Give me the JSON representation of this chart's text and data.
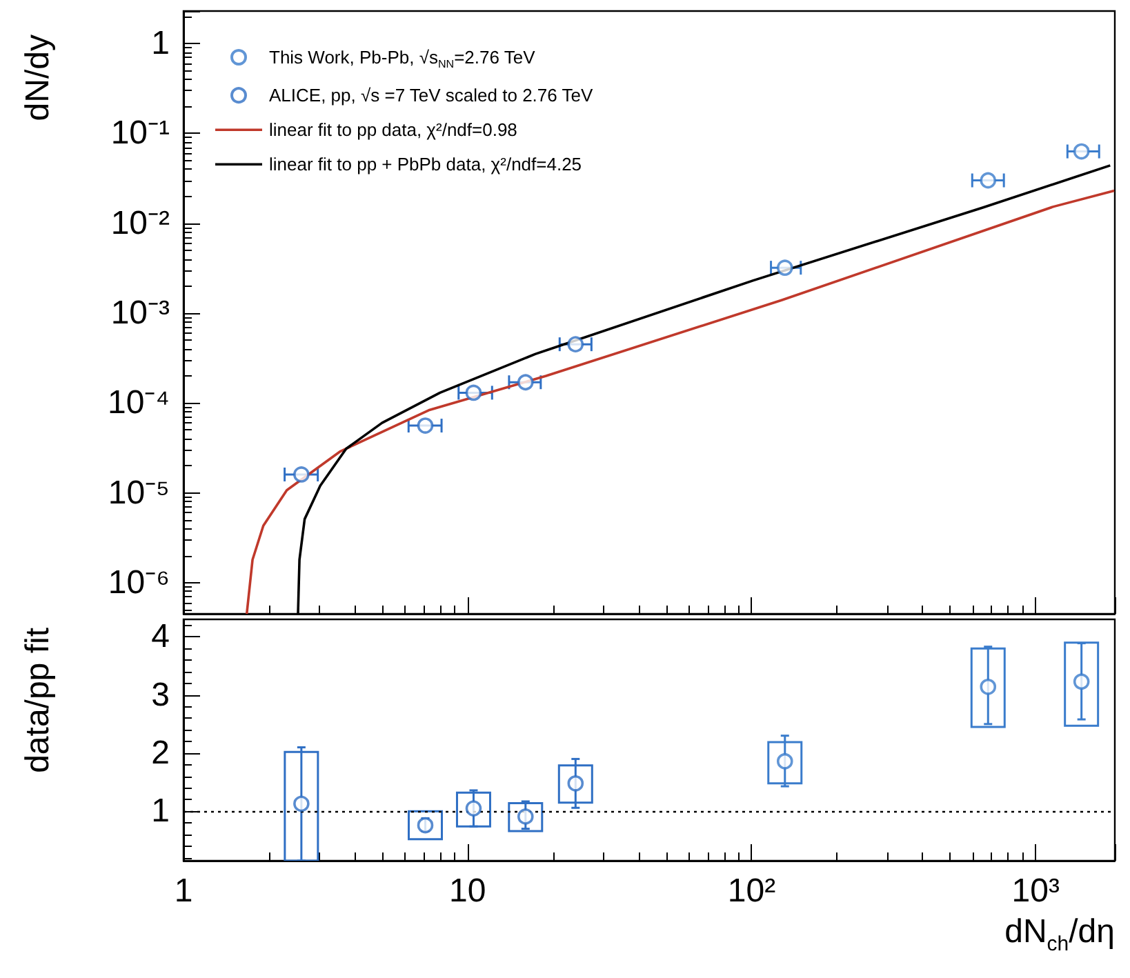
{
  "chart_data": [
    {
      "type": "scatter",
      "ylabel": "dN/dy",
      "log": "xy",
      "legend": "top left",
      "marker": "circle",
      "tick_labels": "y",
      "xlim": [
        1,
        1900
      ],
      "ylim": [
        4.5e-07,
        2.3
      ],
      "yticks": [
        {
          "value": 1e-06,
          "label": "10⁻⁶"
        },
        {
          "value": 1e-05,
          "label": "10⁻⁵"
        },
        {
          "value": 0.0001,
          "label": "10⁻⁴"
        },
        {
          "value": 0.001,
          "label": "10⁻³"
        },
        {
          "value": 0.01,
          "label": "10⁻²"
        },
        {
          "value": 0.1,
          "label": "10⁻¹"
        },
        1
      ],
      "series": [
        {
          "name": "This Work, Pb-Pb, √s$_{NN}$=2.76 TeV",
          "color": "#3a7ccc",
          "x": [
            131,
            680,
            1450
          ],
          "values": [
            0.0032,
            0.03,
            0.063
          ],
          "xerrors": [
            [
              117,
              149
            ],
            [
              598,
              773
            ],
            [
              1294,
              1673
            ]
          ]
        },
        {
          "name": "ALICE, pp, √s =7 TeV scaled to 2.76 TeV",
          "color": "#2f6fc4",
          "x": [
            2.6,
            7.1,
            10.5,
            16,
            24
          ],
          "values": [
            1.6e-05,
            5.6e-05,
            0.00013,
            0.00017,
            0.00045
          ],
          "xerrors": [
            [
              2.27,
              2.97
            ],
            [
              6.2,
              8.1
            ],
            [
              9.3,
              12.2
            ],
            [
              14.0,
              18.1
            ],
            [
              21.1,
              27.3
            ]
          ]
        },
        {
          "name": "linear fit to pp data, χ²/ndf=0.98",
          "type": "line",
          "marker": "none",
          "color": "#c0392b",
          "x": [
            1.67,
            1.75,
            1.91,
            2.31,
            3.57,
            7.3,
            18.9,
            128,
            1156,
            1890
          ],
          "values": [
            4.5e-07,
            1.8e-06,
            4.3e-06,
            1.07e-05,
            2.9e-05,
            8.3e-05,
            0.0002,
            0.0014,
            0.0153,
            0.023
          ]
        },
        {
          "name": "linear fit to pp + PbPb data, χ²/ndf=4.25",
          "type": "line",
          "marker": "none",
          "color": "#000000",
          "x": [
            2.53,
            2.56,
            2.67,
            3.03,
            3.74,
            5.0,
            8.0,
            17.3,
            101,
            654,
            1830
          ],
          "values": [
            4.5e-07,
            1.8e-06,
            5.1e-06,
            1.2e-05,
            3.1e-05,
            6e-05,
            0.00013,
            0.00035,
            0.0023,
            0.015,
            0.044
          ]
        }
      ]
    },
    {
      "type": "scatter",
      "xlabel": "dN$_{ch}$/dη",
      "ylabel": "data/pp fit",
      "log": "x",
      "marker": "circle",
      "xlim": [
        1,
        1900
      ],
      "xticks": [
        1,
        10,
        {
          "value": 100,
          "label": "10²"
        },
        {
          "value": 1000,
          "label": "10³"
        }
      ],
      "ylim": [
        0.15,
        4.3
      ],
      "yticks": [
        1,
        2,
        3,
        4
      ],
      "ref_lines": [
        {
          "axis": "y",
          "value": 1,
          "color": "#000000",
          "line_style": "dotted"
        }
      ],
      "series": [
        {
          "type": "bar",
          "color": "#2f6fc4",
          "x": [
            2.6,
            7.1,
            10.5,
            16,
            24
          ],
          "base": [
            0.15,
            0.52,
            0.74,
            0.66,
            1.15
          ],
          "values": [
            1.87,
            0.48,
            0.58,
            0.48,
            0.64
          ]
        },
        {
          "type": "bar",
          "color": "#3a7ccc",
          "x": [
            131,
            680,
            1450
          ],
          "base": [
            1.48,
            2.45,
            2.47
          ],
          "values": [
            0.71,
            1.35,
            1.43
          ]
        },
        {
          "color": "#2f6fc4",
          "x": [
            2.6,
            7.1,
            10.5,
            16,
            24
          ],
          "values": [
            1.13,
            0.76,
            1.05,
            0.91,
            1.48
          ],
          "errors": [
            [
              0.15,
              2.1
            ],
            [
              0.66,
              0.88
            ],
            [
              0.74,
              1.36
            ],
            [
              0.7,
              1.17
            ],
            [
              1.06,
              1.9
            ]
          ]
        },
        {
          "color": "#3a7ccc",
          "x": [
            131,
            680,
            1450
          ],
          "values": [
            1.86,
            3.14,
            3.23
          ],
          "errors": [
            [
              1.43,
              2.3
            ],
            [
              2.5,
              3.83
            ],
            [
              2.58,
              3.89
            ]
          ]
        }
      ]
    }
  ]
}
